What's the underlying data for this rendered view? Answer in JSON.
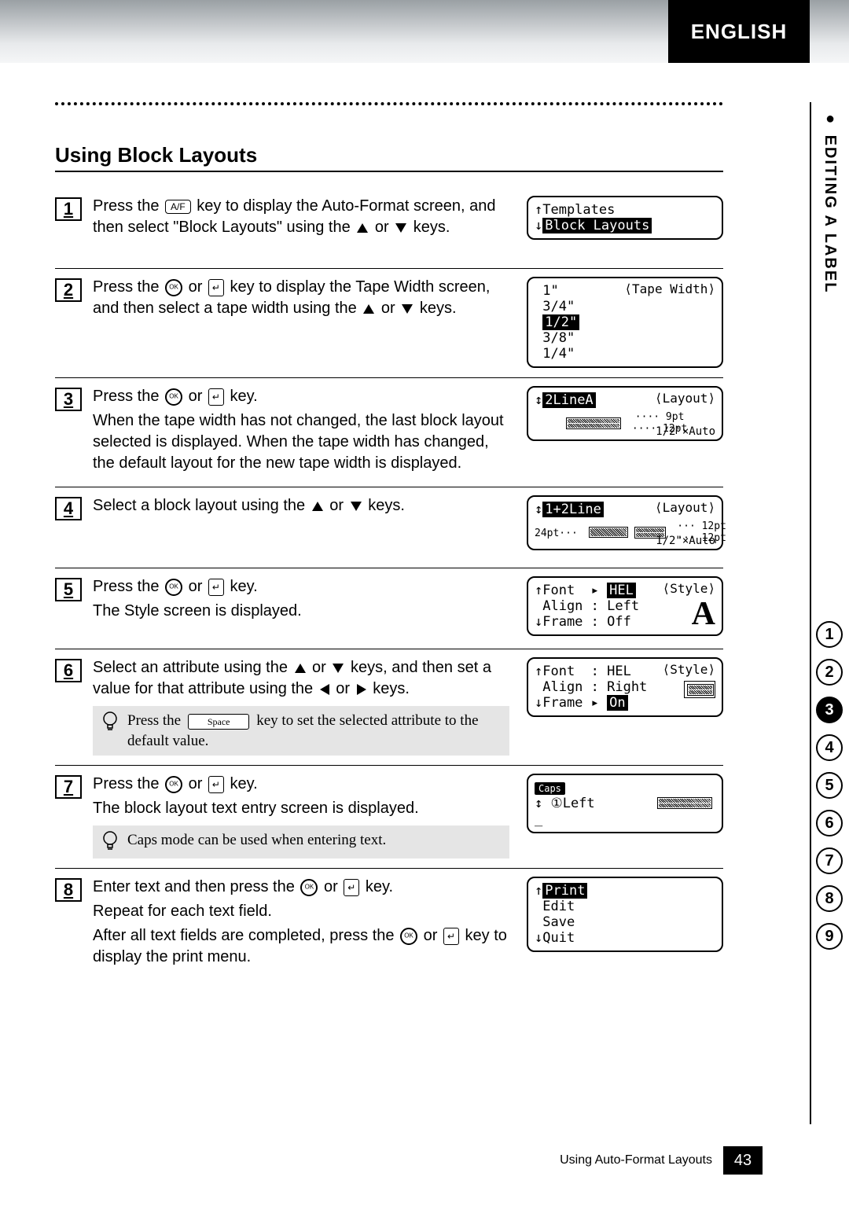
{
  "header": {
    "language_badge": "ENGLISH"
  },
  "side": {
    "section_label": "EDITING A LABEL",
    "chapters": [
      1,
      2,
      3,
      4,
      5,
      6,
      7,
      8,
      9
    ],
    "active_chapter": 3
  },
  "footer": {
    "running_title": "Using Auto-Format Layouts",
    "page_number": "43"
  },
  "section": {
    "title": "Using Block Layouts",
    "steps": [
      {
        "n": "1",
        "text_parts": {
          "a": "Press the ",
          "key1_label": "A/F",
          "b": " key to display the Auto-Format screen, and then select \"Block Layouts\" using the ",
          "c": " or ",
          "d": " keys."
        },
        "lcd": {
          "type": "list_select",
          "rows": [
            "Templates",
            "Block Layouts"
          ],
          "selected_index": 1
        }
      },
      {
        "n": "2",
        "text_parts": {
          "a": "Press the ",
          "b": " or ",
          "c": " key to display the Tape Width screen, and then select a tape width using the ",
          "d": " or ",
          "e": " keys."
        },
        "lcd": {
          "type": "tape_width",
          "right_label": "⟨Tape Width⟩",
          "rows": [
            "1\"",
            "3/4\"",
            "1/2\"",
            "3/8\"",
            "1/4\""
          ],
          "selected_index": 2
        }
      },
      {
        "n": "3",
        "text_parts": {
          "a": "Press the ",
          "b": " or ",
          "c": " key.",
          "d": "When the tape width has not changed, the last block layout selected is displayed. When the tape width has changed, the default layout for the new tape width is displayed."
        },
        "lcd": {
          "type": "layout_preview",
          "sel_label": "2LineA",
          "right_label": "⟨Layout⟩",
          "line_labels": [
            "9pt",
            "12pt"
          ],
          "bottom_label": "1/2\"×Auto"
        }
      },
      {
        "n": "4",
        "text_parts": {
          "a": "Select a block layout using the ",
          "b": " or ",
          "c": " keys."
        },
        "lcd": {
          "type": "layout_preview2",
          "sel_label": "1+2Line",
          "right_label": "⟨Layout⟩",
          "left_pt": "24pt",
          "line_labels": [
            "12pt",
            "12pt"
          ],
          "bottom_label": "1/2\"×Auto"
        }
      },
      {
        "n": "5",
        "text_parts": {
          "a": "Press the ",
          "b": " or ",
          "c": " key.",
          "d": "The Style screen is displayed."
        },
        "lcd": {
          "type": "style",
          "right_label": "⟨Style⟩",
          "rows": [
            {
              "k": "Font",
              "v": "HEL",
              "cursor": true,
              "highlight_value": true
            },
            {
              "k": "Align",
              "v": "Left"
            },
            {
              "k": "Frame",
              "v": "Off"
            }
          ],
          "big_glyph": "A"
        }
      },
      {
        "n": "6",
        "text_parts": {
          "a": "Select an attribute using the ",
          "b": " or ",
          "c": " keys, and then set a value for that attribute using the ",
          "d": " or ",
          "e": " keys."
        },
        "tip": {
          "before": "Press the ",
          "space_label": "Space",
          "after": " key to set the selected attribute to the default value."
        },
        "lcd": {
          "type": "style2",
          "right_label": "⟨Style⟩",
          "rows": [
            {
              "k": "Font",
              "v": "HEL"
            },
            {
              "k": "Align",
              "v": "Right"
            },
            {
              "k": "Frame",
              "v": "On",
              "cursor": true,
              "highlight_value": true
            }
          ],
          "frame_preview": true
        }
      },
      {
        "n": "7",
        "text_parts": {
          "a": "Press the ",
          "b": " or ",
          "c": " key.",
          "d": "The block layout text entry screen is displayed."
        },
        "tip": {
          "plain": "Caps mode can be used when entering text."
        },
        "lcd": {
          "type": "text_entry",
          "caps_label": "Caps",
          "line": "↕ ①Left"
        }
      },
      {
        "n": "8",
        "text_parts": {
          "a": "Enter text and then press the ",
          "b": " or ",
          "c": " key.",
          "d": "Repeat for each text field.",
          "e": "After all text fields are completed, press the ",
          "f": " or ",
          "g": " key to display the print menu."
        },
        "lcd": {
          "type": "menu",
          "rows": [
            "Print",
            "Edit",
            "Save",
            "Quit"
          ],
          "selected_index": 0
        }
      }
    ]
  }
}
